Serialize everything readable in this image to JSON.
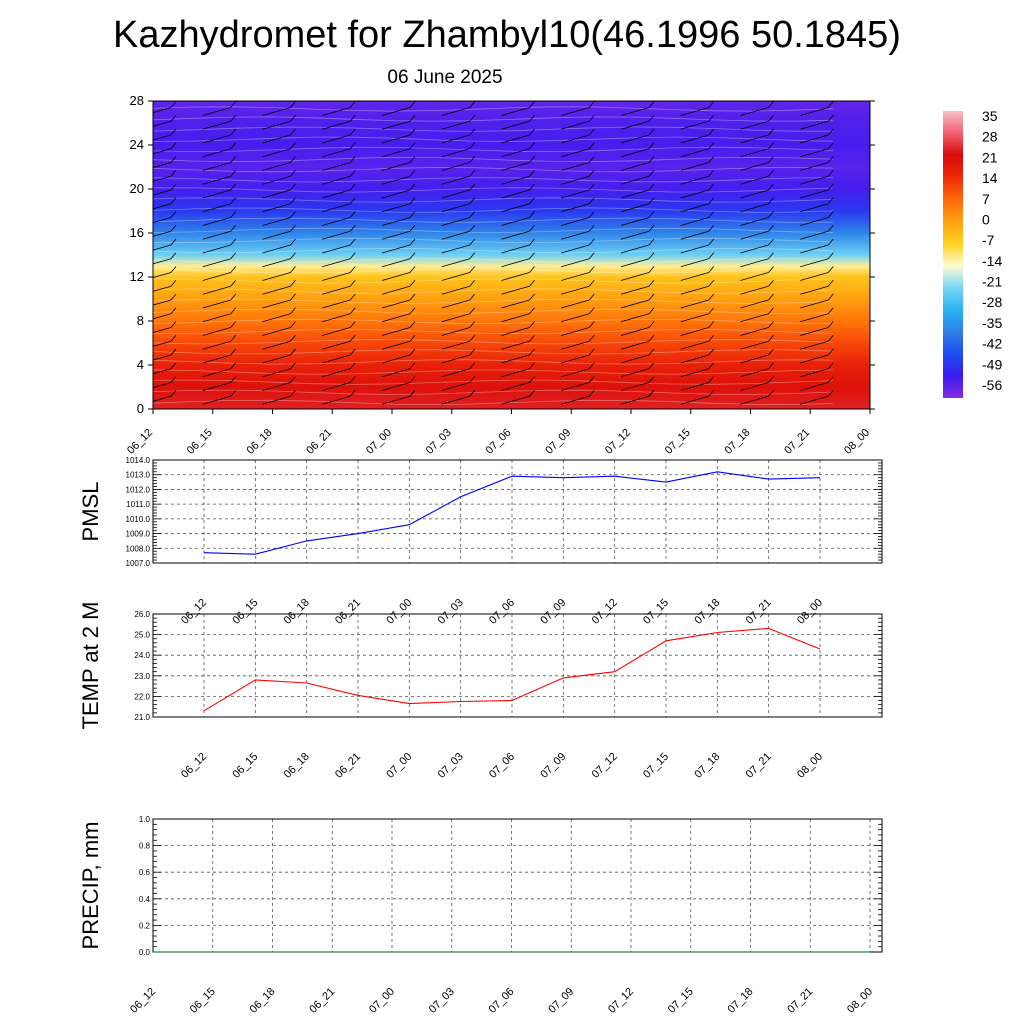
{
  "title": "Kazhydromet for Zhambyl10(46.1996 50.1845)",
  "subtitle": "06 June 2025",
  "time_labels": [
    "06_12",
    "06_15",
    "06_18",
    "06_21",
    "07_00",
    "07_03",
    "07_06",
    "07_09",
    "07_12",
    "07_15",
    "07_18",
    "07_21",
    "08_00"
  ],
  "chart_data": [
    {
      "type": "heatmap",
      "title": "",
      "ylabel": "",
      "y_ticks": [
        0,
        4,
        8,
        12,
        16,
        20,
        24,
        28
      ],
      "ylim": [
        0,
        28
      ],
      "x_categories": [
        "06_12",
        "06_15",
        "06_18",
        "06_21",
        "07_00",
        "07_03",
        "07_06",
        "07_09",
        "07_12",
        "07_15",
        "07_18",
        "07_21",
        "08_00"
      ],
      "colorbar": {
        "labels": [
          "35",
          "28",
          "21",
          "14",
          "7",
          "0",
          "-7",
          "-14",
          "-21",
          "-28",
          "-35",
          "-42",
          "-49",
          "-56"
        ],
        "range": [
          -63,
          42
        ],
        "colors": [
          "#8a2be2",
          "#3a1cf0",
          "#1f4cf0",
          "#2f7fe8",
          "#2ab3f0",
          "#7ad6f5",
          "#fdfbd0",
          "#ffd21f",
          "#ffa210",
          "#ff6a0a",
          "#f02a08",
          "#d80a0a",
          "#f26070",
          "#f5c0c8"
        ]
      },
      "level_temperatures": [
        {
          "y": 0,
          "value": 28
        },
        {
          "y": 2,
          "value": 24
        },
        {
          "y": 4,
          "value": 20
        },
        {
          "y": 6,
          "value": 14
        },
        {
          "y": 8,
          "value": 8
        },
        {
          "y": 10,
          "value": 2
        },
        {
          "y": 12,
          "value": -4
        },
        {
          "y": 13,
          "value": -12
        },
        {
          "y": 14,
          "value": -24
        },
        {
          "y": 16,
          "value": -38
        },
        {
          "y": 18,
          "value": -50
        },
        {
          "y": 20,
          "value": -56
        },
        {
          "y": 22,
          "value": -58
        },
        {
          "y": 24,
          "value": -56
        },
        {
          "y": 26,
          "value": -57
        },
        {
          "y": 28,
          "value": -59
        }
      ],
      "grid": false
    },
    {
      "type": "line",
      "ylabel": "PMSL",
      "ylim": [
        1007.0,
        1014.0
      ],
      "y_ticks": [
        "1007.0",
        "1008.0",
        "1009.0",
        "1010.0",
        "1011.0",
        "1012.0",
        "1013.0",
        "1014.0"
      ],
      "x": [
        "06_12",
        "06_15",
        "06_18",
        "06_21",
        "07_00",
        "07_03",
        "07_06",
        "07_09",
        "07_12",
        "07_15",
        "07_18",
        "07_21",
        "08_00"
      ],
      "series": [
        {
          "values": [
            1007.7,
            1007.6,
            1008.5,
            1009.0,
            1009.6,
            1011.5,
            1012.9,
            1012.8,
            1012.9,
            1012.5,
            1013.2,
            1012.7,
            1012.8
          ],
          "color": "#0000ff"
        }
      ],
      "grid": true
    },
    {
      "type": "line",
      "ylabel": "TEMP at 2 M",
      "ylim": [
        21.0,
        26.0
      ],
      "y_ticks": [
        "21.0",
        "22.0",
        "23.0",
        "24.0",
        "25.0",
        "26.0"
      ],
      "x": [
        "06_12",
        "06_15",
        "06_18",
        "06_21",
        "07_00",
        "07_03",
        "07_06",
        "07_09",
        "07_12",
        "07_15",
        "07_18",
        "07_21",
        "08_00"
      ],
      "series": [
        {
          "values": [
            21.3,
            22.8,
            22.65,
            22.05,
            21.65,
            21.75,
            21.8,
            22.9,
            23.2,
            24.7,
            25.1,
            25.3,
            24.3
          ],
          "color": "#ff0000"
        }
      ],
      "grid": true
    },
    {
      "type": "line",
      "ylabel": "PRECIP, mm",
      "ylim": [
        0.0,
        1.0
      ],
      "y_ticks": [
        "0.0",
        "0.2",
        "0.4",
        "0.6",
        "0.8",
        "1.0"
      ],
      "x": [
        "06_12",
        "06_15",
        "06_18",
        "06_21",
        "07_00",
        "07_03",
        "07_06",
        "07_09",
        "07_12",
        "07_15",
        "07_18",
        "07_21",
        "08_00"
      ],
      "series": [
        {
          "values": [
            0,
            0,
            0,
            0,
            0,
            0,
            0,
            0,
            0,
            0,
            0,
            0,
            0
          ],
          "color": "#006400"
        }
      ],
      "grid": true
    }
  ]
}
